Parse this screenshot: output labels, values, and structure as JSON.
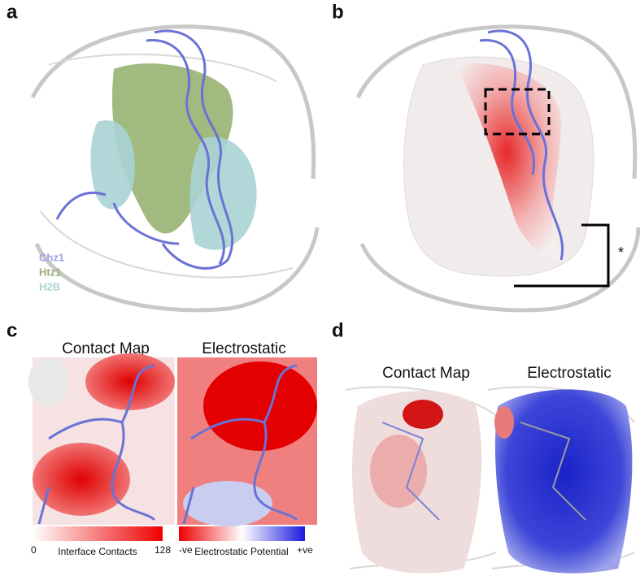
{
  "panels": [
    {
      "label": "a",
      "legend": [
        "Chz1",
        "Htz1",
        "H2B"
      ]
    },
    {
      "label": "b",
      "annotation": "*"
    },
    {
      "label": "c",
      "titles": [
        "Contact Map",
        "Electrostatic"
      ],
      "colorbars": [
        {
          "min": 0,
          "title": "Interface Contacts",
          "max": 128
        },
        {
          "min": "-ve",
          "title": "Electrostatic Potential",
          "max": "+ve"
        }
      ]
    },
    {
      "label": "d",
      "titles": [
        "Contact Map",
        "Electrostatic"
      ]
    }
  ]
}
